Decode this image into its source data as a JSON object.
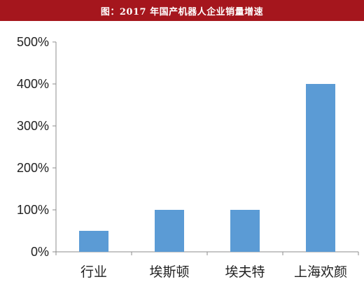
{
  "title": "图：2017 年国产机器人企业销量增速",
  "colors": {
    "title_bg": "#a5161d",
    "bar": "#5b9bd5",
    "axis": "#8c8c8c"
  },
  "chart_data": {
    "type": "bar",
    "categories": [
      "行业",
      "埃斯顿",
      "埃夫特",
      "上海欢颜"
    ],
    "values": [
      50,
      100,
      100,
      400
    ],
    "ylim": [
      0,
      500
    ],
    "yticks": [
      0,
      100,
      200,
      300,
      400,
      500
    ],
    "ytick_labels": [
      "0%",
      "100%",
      "200%",
      "300%",
      "400%",
      "500%"
    ],
    "value_format": "percent",
    "grid": false,
    "legend": "none"
  }
}
